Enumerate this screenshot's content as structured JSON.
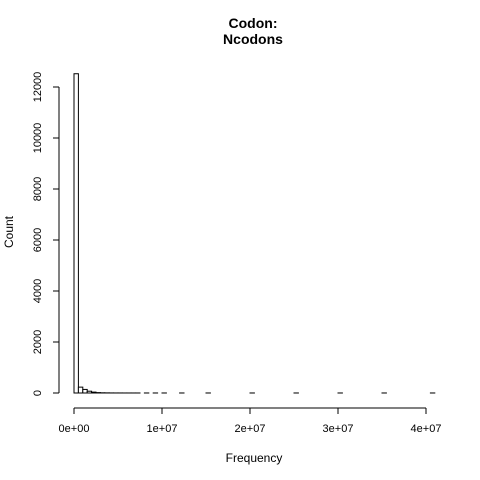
{
  "chart_data": {
    "type": "histogram",
    "title_line1": "Codon:",
    "title_line2": "Ncodons",
    "xlabel": "Frequency",
    "ylabel": "Count",
    "xlim": [
      0,
      41000000
    ],
    "ylim": [
      0,
      12600
    ],
    "x_ticks": [
      0,
      10000000,
      20000000,
      30000000,
      40000000
    ],
    "x_tick_labels": [
      "0e+00",
      "1e+07",
      "2e+07",
      "3e+07",
      "4e+07"
    ],
    "y_ticks": [
      0,
      2000,
      4000,
      6000,
      8000,
      10000,
      12000
    ],
    "y_tick_labels": [
      "0",
      "2000",
      "4000",
      "6000",
      "8000",
      "10000",
      "12000"
    ],
    "bin_width": 500000,
    "bins": [
      {
        "start": 0,
        "count": 12520
      },
      {
        "start": 500000,
        "count": 230
      },
      {
        "start": 1000000,
        "count": 140
      },
      {
        "start": 1500000,
        "count": 70
      },
      {
        "start": 2000000,
        "count": 35
      },
      {
        "start": 2500000,
        "count": 15
      },
      {
        "start": 3000000,
        "count": 8
      },
      {
        "start": 3500000,
        "count": 5
      },
      {
        "start": 4000000,
        "count": 3
      },
      {
        "start": 4500000,
        "count": 2
      },
      {
        "start": 5000000,
        "count": 2
      },
      {
        "start": 5500000,
        "count": 1
      },
      {
        "start": 6000000,
        "count": 1
      },
      {
        "start": 6500000,
        "count": 1
      },
      {
        "start": 7000000,
        "count": 1
      },
      {
        "start": 8000000,
        "count": 1
      },
      {
        "start": 9000000,
        "count": 1
      },
      {
        "start": 10000000,
        "count": 1
      },
      {
        "start": 12000000,
        "count": 1
      },
      {
        "start": 15000000,
        "count": 1
      },
      {
        "start": 20000000,
        "count": 1
      },
      {
        "start": 25000000,
        "count": 1
      },
      {
        "start": 30000000,
        "count": 1
      },
      {
        "start": 35000000,
        "count": 1
      },
      {
        "start": 40500000,
        "count": 1
      }
    ]
  }
}
